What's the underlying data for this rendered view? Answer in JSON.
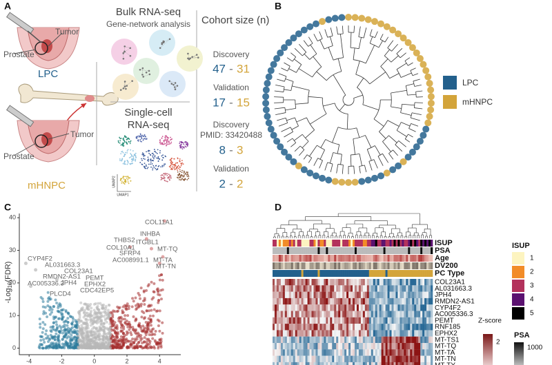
{
  "panel_a": {
    "label": "A",
    "top_tumor": "Tumor",
    "top_prostate": "Prostate",
    "top_group": "LPC",
    "bottom_tumor": "Tumor",
    "bottom_prostate": "Prostate",
    "bottom_group": "mHNPC",
    "bulk_title": "Bulk RNA-seq",
    "bulk_subtitle": "Gene-network analysis",
    "cohort_title": "Cohort size (n)",
    "bulk_discovery": {
      "label": "Discovery",
      "lpc": 47,
      "dash": "-",
      "mhnpc": 31
    },
    "bulk_validation": {
      "label": "Validation",
      "lpc": 17,
      "dash": "-",
      "mhnpc": 15
    },
    "sc_title_1": "Single-cell",
    "sc_title_2": "RNA-seq",
    "sc_discovery": {
      "label": "Discovery",
      "pmid": "PMID: 33420488",
      "lpc": 8,
      "dash": "-",
      "mhnpc": 3
    },
    "sc_validation": {
      "label": "Validation",
      "lpc": 2,
      "dash": "-",
      "mhnpc": 2
    },
    "umap_y": "UMAP2",
    "umap_x": "UMAP1"
  },
  "panel_b": {
    "label": "B",
    "legend": [
      {
        "name": "LPC",
        "color": "#23608c"
      },
      {
        "name": "mHNPC",
        "color": "#d3a43a"
      }
    ]
  },
  "panel_c": {
    "label": "C",
    "y_label": "-Log",
    "y_label_sub": "10",
    "y_label_tail": "(FDR)",
    "xlim": [
      -4.6,
      5.3
    ],
    "ylim": [
      -2,
      41.3
    ],
    "xticks": [
      -4,
      -2,
      0,
      2,
      4
    ],
    "yticks": [
      0,
      10,
      20,
      30,
      40
    ],
    "genes": [
      "COL11A1",
      "INHBA",
      "THBS2",
      "ITGBL1",
      "COL10A1",
      "SFRP4",
      "AC008991.1",
      "MT-TQ",
      "MT-TA",
      "MT-TN",
      "CYP4F2",
      "AL031663.3",
      "RMDN2-AS1",
      "COL23A1",
      "AC005336.3",
      "JPH4",
      "PEMT",
      "EPHX2",
      "CDC42EP5",
      "PLCD4"
    ]
  },
  "panel_d": {
    "label": "D",
    "annotations": [
      "ISUP",
      "PSA",
      "Age",
      "DV200",
      "PC Type"
    ],
    "genes": [
      "COL23A1",
      "AL031663.3",
      "JPH4",
      "RMDN2-AS1",
      "CYP4F2",
      "AC005336.3",
      "PEMT",
      "RNF185",
      "EPHX2",
      "MT-TS1",
      "MT-TQ",
      "MT-TA",
      "MT-TN",
      "MT-TY"
    ],
    "isup_title": "ISUP",
    "isup_legend": [
      {
        "label": 1,
        "color": "#fdf4c0"
      },
      {
        "label": 2,
        "color": "#f28c28"
      },
      {
        "label": 3,
        "color": "#b3325c"
      },
      {
        "label": 4,
        "color": "#5b1270"
      },
      {
        "label": 5,
        "color": "#000000"
      }
    ],
    "zscore_title": "Z-score",
    "zscore_tick": 2,
    "psa_title": "PSA",
    "psa_tick": 1000
  }
}
